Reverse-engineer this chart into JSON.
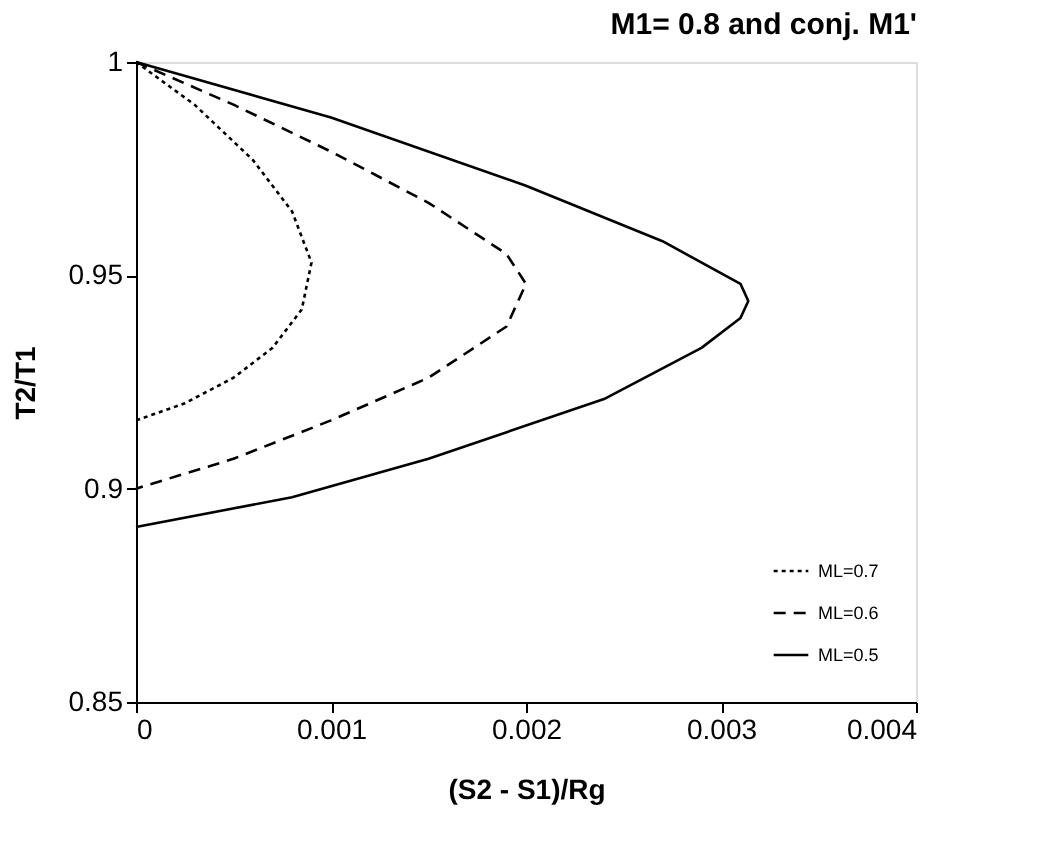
{
  "chart_data": {
    "type": "line",
    "title": "M1= 0.8 and conj. M1'",
    "xlabel": "(S2 - S1)/Rg",
    "ylabel": "T2/T1",
    "xlim": [
      0,
      0.004
    ],
    "xticks": [
      0,
      0.001,
      0.002,
      0.003,
      0.004
    ],
    "ylim": [
      0.85,
      1
    ],
    "yticks": [
      0.85,
      0.9,
      0.95,
      1
    ],
    "grid": false,
    "legend": "bottom right",
    "marker": "none",
    "series": [
      {
        "name": "ML=0.7",
        "color": "#000000",
        "line_style": "dotted",
        "x": [
          0,
          0.0003,
          0.0006,
          0.0008,
          0.0009,
          0.00085,
          0.0007,
          0.0005,
          0.00025,
          0
        ],
        "values": [
          1,
          0.99,
          0.977,
          0.965,
          0.953,
          0.942,
          0.933,
          0.926,
          0.92,
          0.916
        ]
      },
      {
        "name": "ML=0.6",
        "color": "#000000",
        "line_style": "dashed",
        "x": [
          0,
          0.0005,
          0.001,
          0.0015,
          0.0019,
          0.002,
          0.0019,
          0.0015,
          0.001,
          0.0005,
          0
        ],
        "values": [
          1,
          0.99,
          0.979,
          0.967,
          0.955,
          0.948,
          0.938,
          0.926,
          0.916,
          0.907,
          0.9
        ]
      },
      {
        "name": "ML=0.5",
        "color": "#000000",
        "line_style": "solid",
        "x": [
          0,
          0.001,
          0.002,
          0.0027,
          0.0031,
          0.00314,
          0.0031,
          0.0029,
          0.0024,
          0.0015,
          0.0008,
          0
        ],
        "values": [
          1,
          0.987,
          0.971,
          0.958,
          0.948,
          0.944,
          0.94,
          0.933,
          0.921,
          0.907,
          0.898,
          0.891
        ]
      }
    ]
  }
}
